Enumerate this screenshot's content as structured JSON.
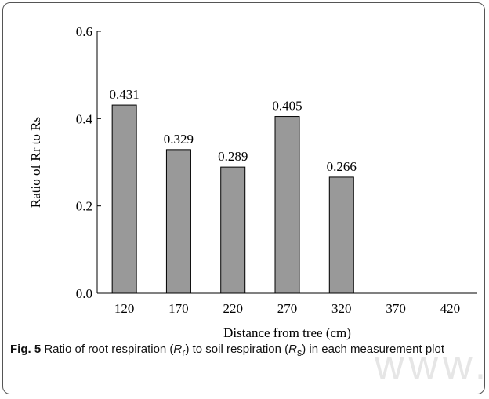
{
  "chart_data": {
    "type": "bar",
    "categories": [
      "120",
      "170",
      "220",
      "270",
      "320",
      "370",
      "420"
    ],
    "values": [
      0.431,
      0.329,
      0.289,
      0.405,
      0.266,
      null,
      null
    ],
    "data_labels": [
      "0.431",
      "0.329",
      "0.289",
      "0.405",
      "0.266",
      "",
      ""
    ],
    "xlabel": "Distance from tree (cm)",
    "ylabel": "Ratio of Rr to Rs",
    "ylim": [
      0,
      0.6
    ],
    "yticks": [
      "0.0",
      "0.2",
      "0.4",
      "0.6"
    ],
    "ytick_values": [
      0,
      0.2,
      0.4,
      0.6
    ],
    "bar_color": "#999999",
    "grid": false,
    "legend": "none"
  },
  "caption": {
    "label": "Fig. 5",
    "text_before": " Ratio of root respiration (",
    "r_r": "R",
    "r_r_sub": "r",
    "text_mid": ") to soil respiration (",
    "r_s": "R",
    "r_s_sub": "s",
    "text_after": ") in each measurement plot"
  },
  "watermark": {
    "text": "www.k"
  }
}
